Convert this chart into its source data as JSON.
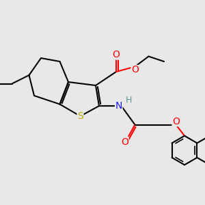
{
  "bg_color": "#e8e8e8",
  "atom_colors": {
    "C": "#000000",
    "O": "#ff0000",
    "N": "#1a1aff",
    "S": "#bbaa00",
    "H": "#5a9898"
  },
  "bond_color": "#000000",
  "bond_width": 1.5,
  "figsize": [
    3.0,
    3.0
  ],
  "dpi": 100,
  "xlim": [
    0,
    12
  ],
  "ylim": [
    0,
    12
  ]
}
